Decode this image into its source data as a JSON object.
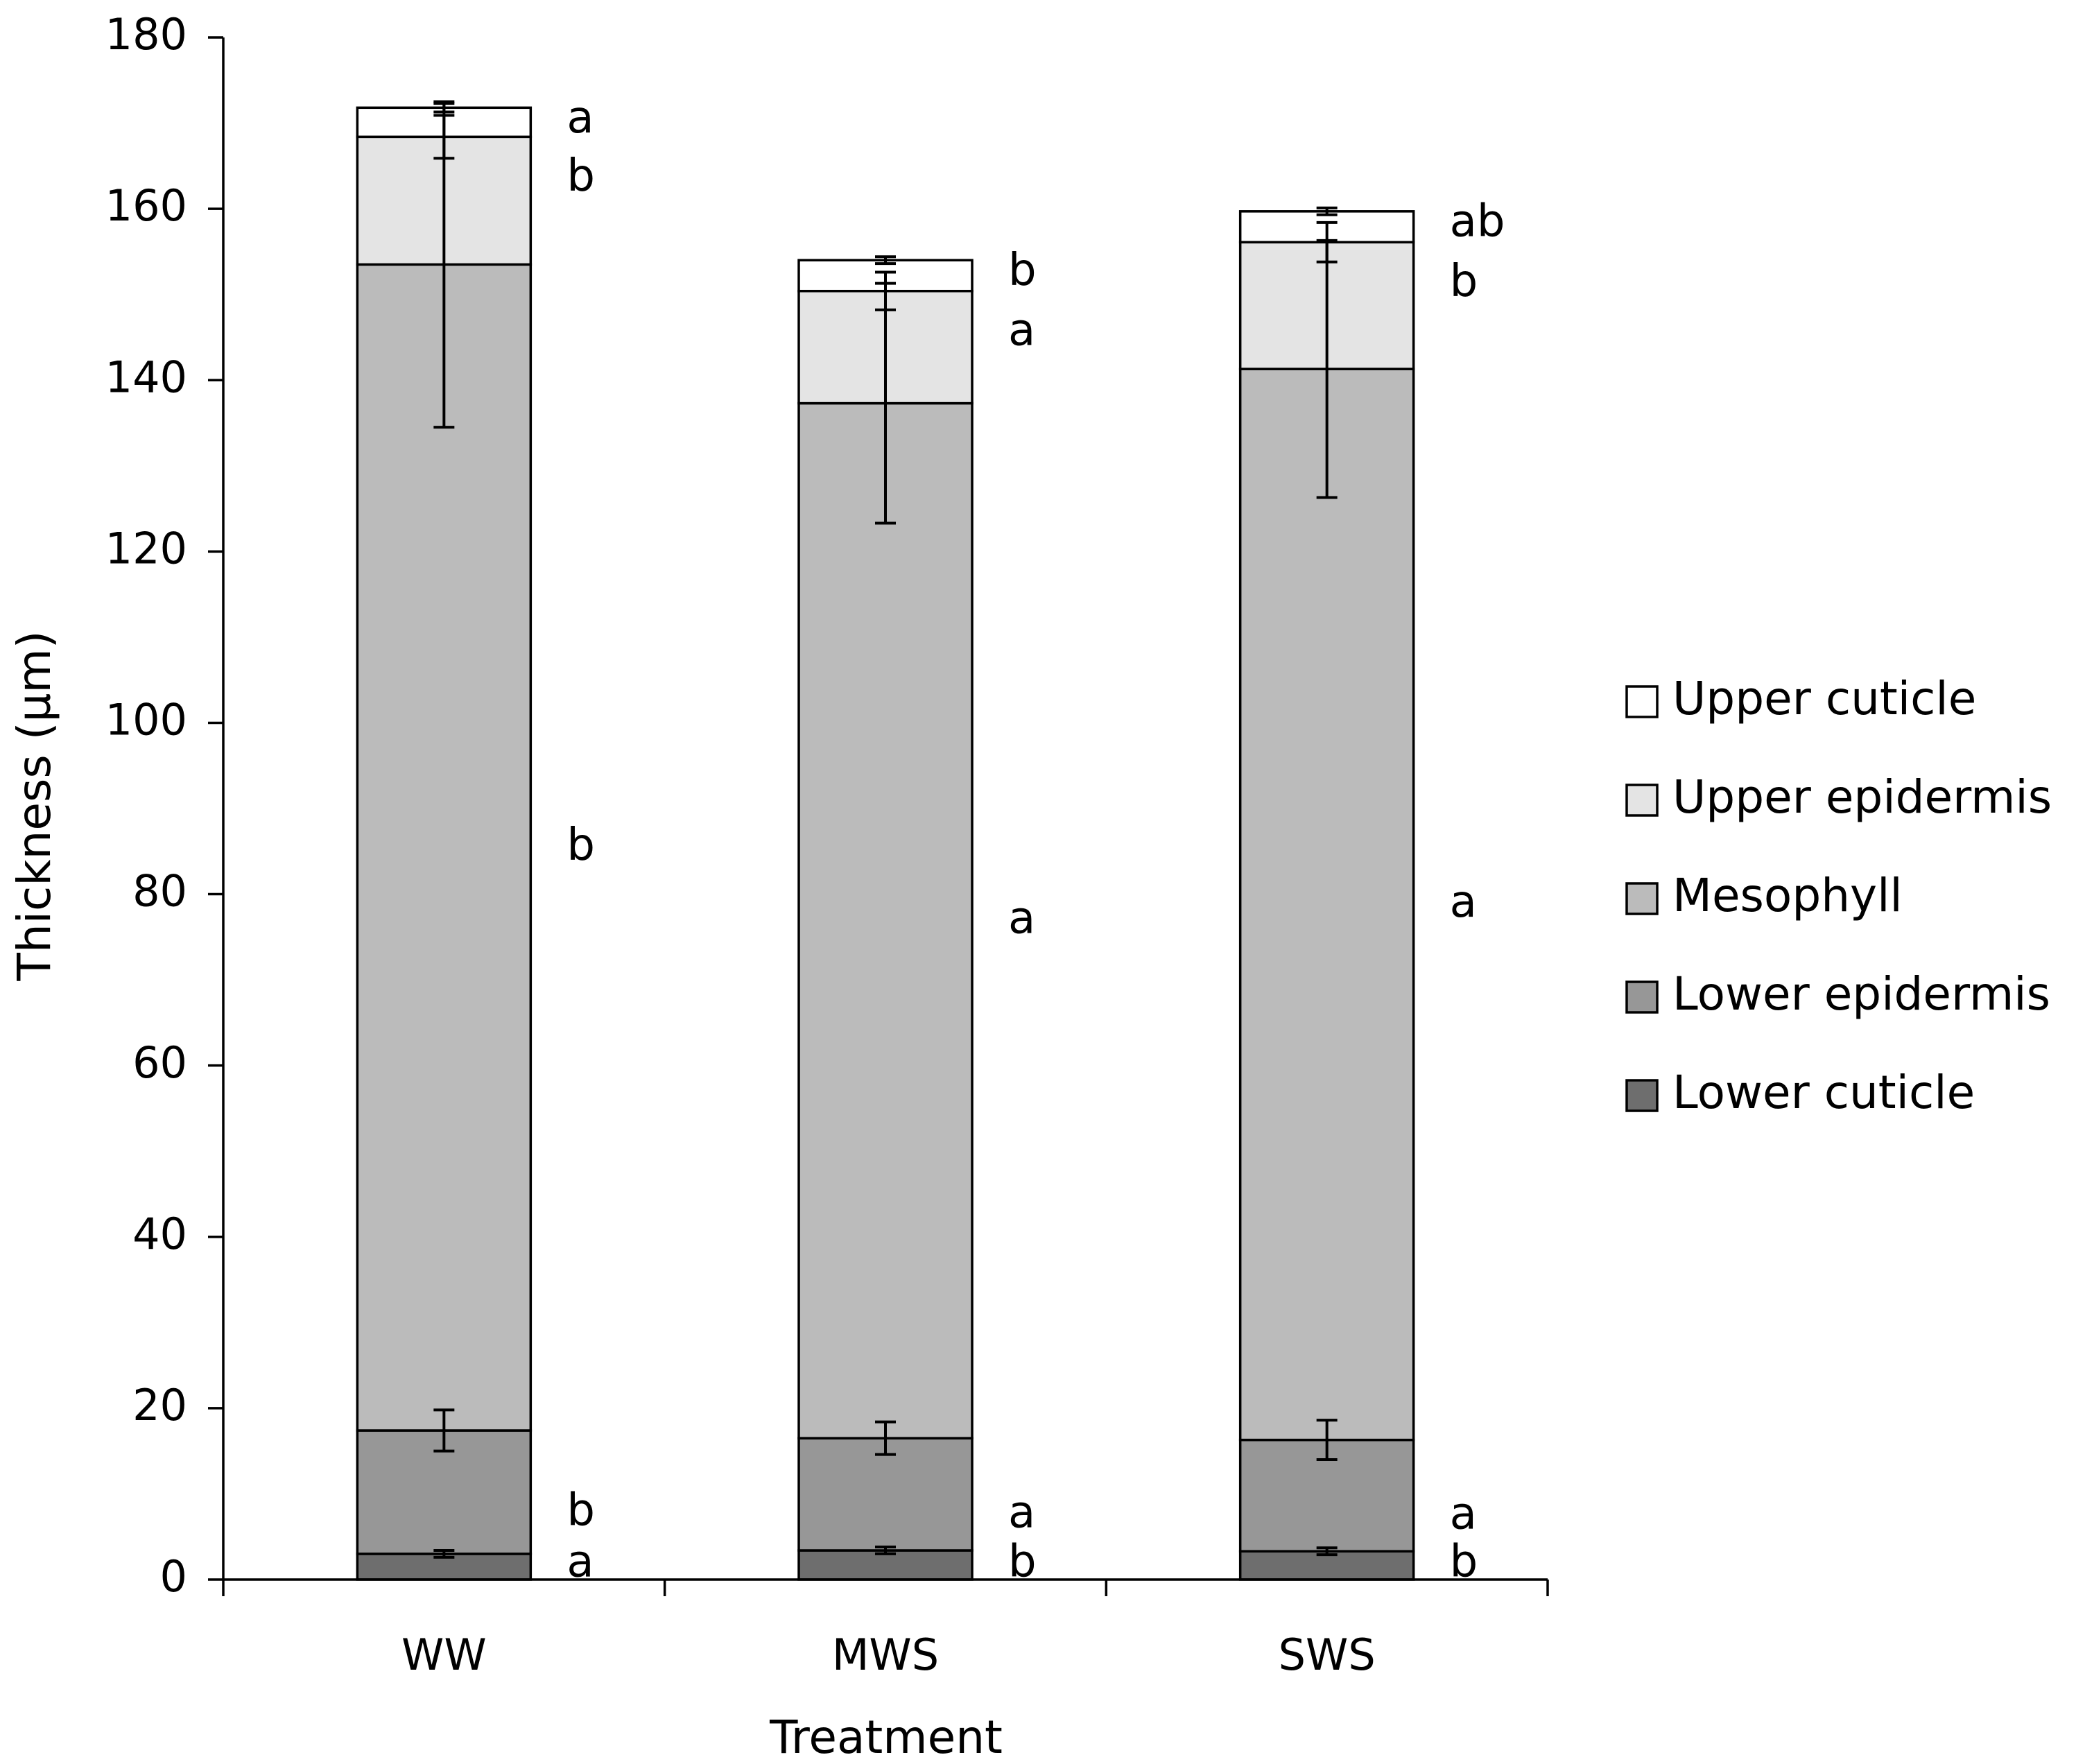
{
  "chart_data": {
    "type": "bar",
    "stacked": true,
    "title": "",
    "xlabel": "Treatment",
    "ylabel": "Thickness (µm)",
    "ylim": [
      0,
      180
    ],
    "yticks": [
      0,
      20,
      40,
      60,
      80,
      100,
      120,
      140,
      160,
      180
    ],
    "grid": false,
    "legend_position": "right",
    "categories": [
      "WW",
      "MWS",
      "SWS"
    ],
    "series": [
      {
        "name": "Lower cuticle",
        "color": "#6e6e6e",
        "values": [
          3.0,
          3.4,
          3.3
        ],
        "errors": [
          0.4,
          0.4,
          0.4
        ],
        "letters": [
          "a",
          "b",
          "b"
        ]
      },
      {
        "name": "Lower epidermis",
        "color": "#979797",
        "values": [
          14.4,
          13.1,
          13.0
        ],
        "errors": [
          2.4,
          1.9,
          2.3
        ],
        "letters": [
          "b",
          "a",
          "a"
        ]
      },
      {
        "name": "Mesophyll",
        "color": "#bbbbbb",
        "values": [
          136.1,
          120.8,
          125.0
        ],
        "errors": [
          19.0,
          14.0,
          15.0
        ],
        "letters": [
          "b",
          "a",
          "a"
        ]
      },
      {
        "name": "Upper epidermis",
        "color": "#e4e4e4",
        "values": [
          14.9,
          13.1,
          14.8
        ],
        "errors": [
          2.5,
          2.2,
          2.3
        ],
        "letters": [
          "b",
          "a",
          "b"
        ]
      },
      {
        "name": "Upper cuticle",
        "color": "#ffffff",
        "values": [
          3.4,
          3.6,
          3.6
        ],
        "errors": [
          0.5,
          0.4,
          0.4
        ],
        "letters": [
          "a",
          "b",
          "ab"
        ]
      }
    ],
    "legend_order": [
      "Upper cuticle",
      "Upper epidermis",
      "Mesophyll",
      "Lower epidermis",
      "Lower cuticle"
    ]
  }
}
